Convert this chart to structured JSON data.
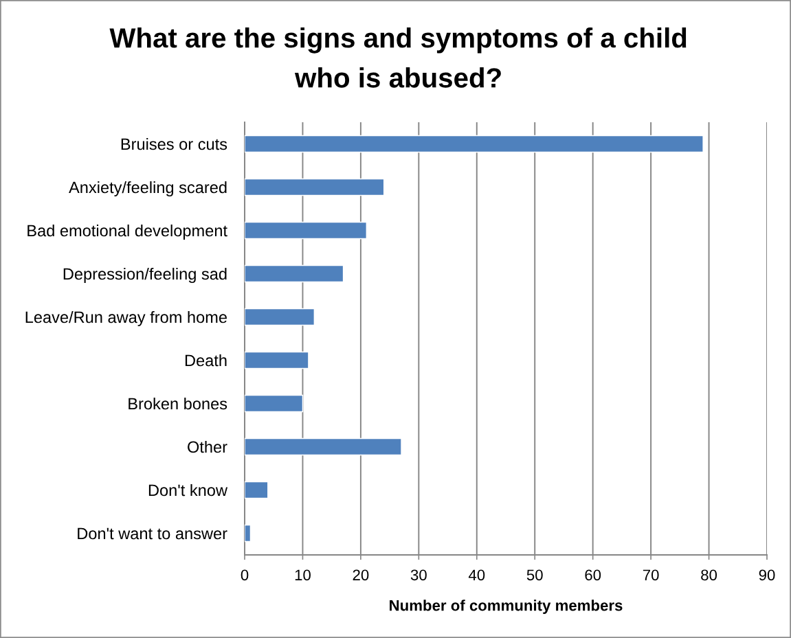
{
  "chart_data": {
    "type": "bar",
    "orientation": "horizontal",
    "title": "What are the signs and symptoms of a child\nwho is abused?",
    "xlabel": "Number of community members",
    "categories": [
      "Bruises or cuts",
      "Anxiety/feeling scared",
      "Bad emotional development",
      "Depression/feeling sad",
      "Leave/Run away from home",
      "Death",
      "Broken bones",
      "Other",
      "Don't know",
      "Don't want to answer"
    ],
    "values": [
      79,
      24,
      21,
      17,
      12,
      11,
      10,
      27,
      4,
      1
    ],
    "color": "#4f81bd",
    "xlim": [
      0,
      90
    ],
    "xticks": [
      0,
      10,
      20,
      30,
      40,
      50,
      60,
      70,
      80,
      90
    ],
    "grid": "x"
  }
}
